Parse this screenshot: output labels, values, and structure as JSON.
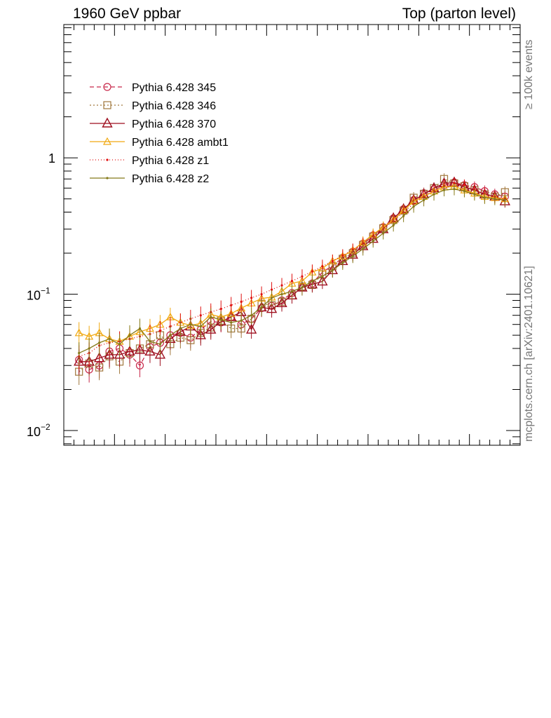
{
  "header": {
    "left": "1960 GeV ppbar",
    "right": "Top (parton level)"
  },
  "side_labels": {
    "events": "≥ 100k events",
    "reference": "mcplots.cern.ch [arXiv:2401.10621]"
  },
  "chart_data": {
    "type": "line",
    "yscale": "log",
    "ylim": [
      0.0078,
      9.5
    ],
    "xlim": [
      0,
      45
    ],
    "x_ticks_labeled": false,
    "y_tick_labels": [
      {
        "value": 0.01,
        "base": "10",
        "exp": "−2"
      },
      {
        "value": 0.1,
        "base": "10",
        "exp": "−1"
      },
      {
        "value": 1,
        "text": "1"
      }
    ],
    "legend_position": "top-left",
    "x": [
      1.5,
      2.5,
      3.5,
      4.5,
      5.5,
      6.5,
      7.5,
      8.5,
      9.5,
      10.5,
      11.5,
      12.5,
      13.5,
      14.5,
      15.5,
      16.5,
      17.5,
      18.5,
      19.5,
      20.5,
      21.5,
      22.5,
      23.5,
      24.5,
      25.5,
      26.5,
      27.5,
      28.5,
      29.5,
      30.5,
      31.5,
      32.5,
      33.5,
      34.5,
      35.5,
      36.5,
      37.5,
      38.5,
      39.5,
      40.5,
      41.5,
      42.5,
      43.5
    ],
    "series": [
      {
        "name": "Pythia 6.428 345",
        "color": "#c8284a",
        "dash": "6,4",
        "marker": "circle",
        "values": [
          0.033,
          0.028,
          0.03,
          0.038,
          0.04,
          0.036,
          0.03,
          0.041,
          0.044,
          0.05,
          0.052,
          0.048,
          0.055,
          0.063,
          0.062,
          0.068,
          0.06,
          0.066,
          0.079,
          0.082,
          0.09,
          0.102,
          0.112,
          0.12,
          0.145,
          0.162,
          0.185,
          0.205,
          0.235,
          0.27,
          0.31,
          0.36,
          0.42,
          0.49,
          0.55,
          0.59,
          0.63,
          0.66,
          0.63,
          0.61,
          0.57,
          0.54,
          0.52
        ]
      },
      {
        "name": "Pythia 6.428 346",
        "color": "#a0773c",
        "dash": "2,3",
        "marker": "square",
        "values": [
          0.027,
          0.031,
          0.029,
          0.035,
          0.032,
          0.037,
          0.04,
          0.043,
          0.05,
          0.043,
          0.048,
          0.046,
          0.052,
          0.057,
          0.064,
          0.056,
          0.056,
          0.066,
          0.085,
          0.083,
          0.088,
          0.098,
          0.114,
          0.117,
          0.14,
          0.16,
          0.182,
          0.2,
          0.23,
          0.265,
          0.305,
          0.35,
          0.41,
          0.51,
          0.545,
          0.6,
          0.7,
          0.65,
          0.62,
          0.58,
          0.54,
          0.52,
          0.56
        ]
      },
      {
        "name": "Pythia 6.428 370",
        "color": "#9e0f1f",
        "dash": "",
        "marker": "triangle-big",
        "values": [
          0.032,
          0.032,
          0.034,
          0.036,
          0.036,
          0.038,
          0.039,
          0.038,
          0.036,
          0.047,
          0.053,
          0.058,
          0.05,
          0.055,
          0.063,
          0.068,
          0.074,
          0.055,
          0.08,
          0.078,
          0.086,
          0.098,
          0.112,
          0.118,
          0.124,
          0.15,
          0.175,
          0.195,
          0.225,
          0.255,
          0.3,
          0.36,
          0.42,
          0.49,
          0.54,
          0.6,
          0.65,
          0.66,
          0.61,
          0.58,
          0.54,
          0.52,
          0.48
        ]
      },
      {
        "name": "Pythia 6.428 ambt1",
        "color": "#f0a810",
        "dash": "",
        "marker": "triangle-small",
        "values": [
          0.052,
          0.049,
          0.052,
          0.047,
          0.045,
          0.049,
          0.053,
          0.056,
          0.06,
          0.068,
          0.062,
          0.059,
          0.061,
          0.071,
          0.068,
          0.072,
          0.079,
          0.086,
          0.093,
          0.095,
          0.105,
          0.12,
          0.125,
          0.145,
          0.155,
          0.175,
          0.19,
          0.21,
          0.24,
          0.275,
          0.31,
          0.35,
          0.41,
          0.48,
          0.52,
          0.57,
          0.61,
          0.62,
          0.58,
          0.55,
          0.52,
          0.51,
          0.5
        ]
      },
      {
        "name": "Pythia 6.428 z1",
        "color": "#e01010",
        "dash": "1,3",
        "marker": "dot",
        "values": [
          0.035,
          0.037,
          0.042,
          0.044,
          0.045,
          0.047,
          0.049,
          0.051,
          0.054,
          0.058,
          0.062,
          0.066,
          0.07,
          0.074,
          0.078,
          0.083,
          0.088,
          0.094,
          0.1,
          0.108,
          0.116,
          0.125,
          0.135,
          0.147,
          0.16,
          0.175,
          0.192,
          0.212,
          0.235,
          0.265,
          0.3,
          0.345,
          0.4,
          0.46,
          0.52,
          0.575,
          0.625,
          0.65,
          0.63,
          0.59,
          0.55,
          0.52,
          0.5
        ]
      },
      {
        "name": "Pythia 6.428 z2",
        "color": "#857a1a",
        "dash": "",
        "marker": "dot",
        "values": [
          0.037,
          0.04,
          0.044,
          0.047,
          0.043,
          0.05,
          0.056,
          0.045,
          0.043,
          0.05,
          0.056,
          0.06,
          0.058,
          0.068,
          0.065,
          0.062,
          0.064,
          0.07,
          0.08,
          0.094,
          0.1,
          0.105,
          0.112,
          0.125,
          0.135,
          0.15,
          0.17,
          0.19,
          0.215,
          0.245,
          0.28,
          0.32,
          0.375,
          0.44,
          0.49,
          0.54,
          0.58,
          0.59,
          0.57,
          0.54,
          0.51,
          0.5,
          0.49
        ]
      }
    ]
  }
}
